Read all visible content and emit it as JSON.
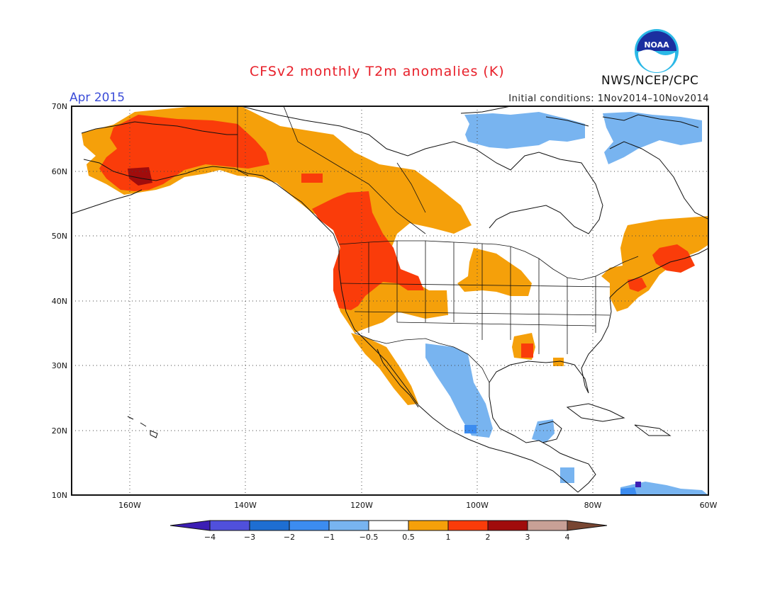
{
  "header": {
    "title": "CFSv2 monthly T2m anomalies (K)",
    "month": "Apr 2015",
    "initial_conditions": "Initial conditions: 1Nov2014–10Nov2014",
    "agency": "NWS/NCEP/CPC",
    "logo_text": "NOAA"
  },
  "map": {
    "lat_labels": [
      "70N",
      "60N",
      "50N",
      "40N",
      "30N",
      "20N",
      "10N"
    ],
    "lon_labels": [
      "160W",
      "140W",
      "120W",
      "100W",
      "80W",
      "60W"
    ],
    "colors": {
      "warm_1": "#f5a00a",
      "warm_2": "#fa3c0a",
      "warm_3": "#a00c0c",
      "cool_1": "#78b4f0",
      "cool_2": "#3c8cf0",
      "cool_4": "#3c1eb4"
    }
  },
  "colorbar": {
    "labels": [
      "−4",
      "−3",
      "−2",
      "−1",
      "−0.5",
      "0.5",
      "1",
      "2",
      "3",
      "4"
    ],
    "colors": [
      "#3c1eb4",
      "#5050dc",
      "#1e6ed2",
      "#3c8cf0",
      "#78b4f0",
      "#ffffff",
      "#f5a00a",
      "#fa3c0a",
      "#a00c0c",
      "#c8a096",
      "#784632"
    ]
  }
}
